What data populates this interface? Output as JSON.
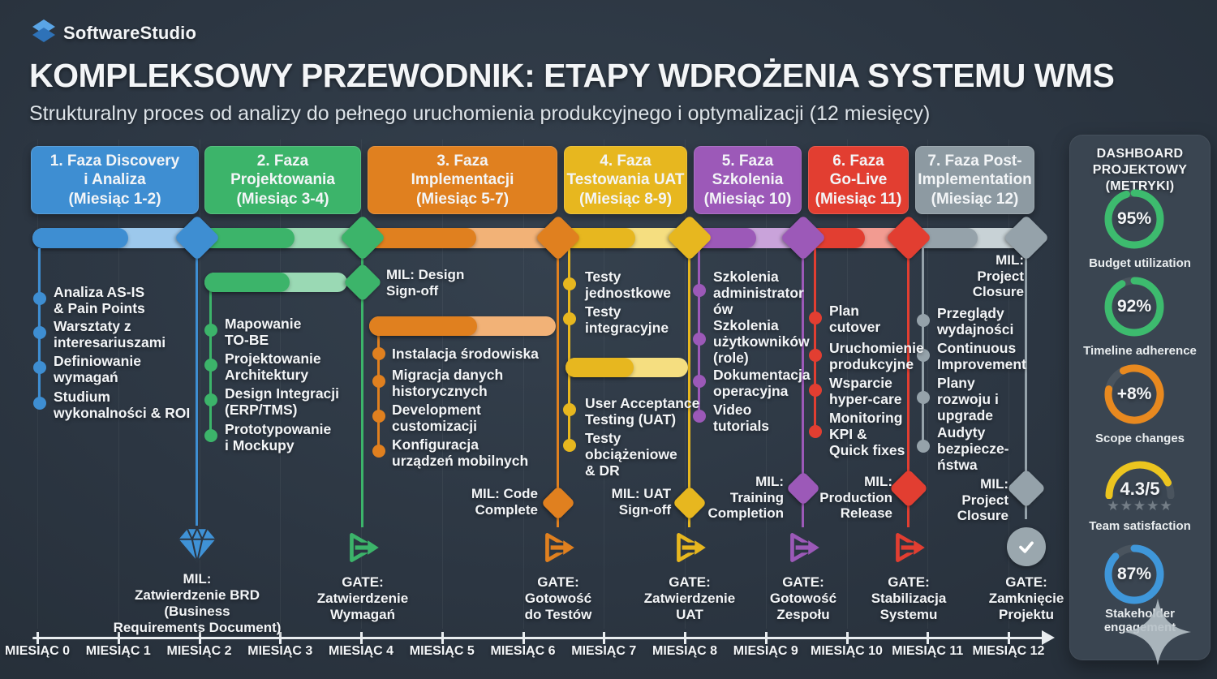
{
  "brand": "SoftwareStudio",
  "header": {
    "title": "KOMPLEKSOWY PRZEWODNIK: ETAPY WDROŻENIA SYSTEMU WMS",
    "subtitle": "Strukturalny proces od analizy do pełnego uruchomienia produkcyjnego i optymalizacji (12 miesięcy)"
  },
  "phases": [
    {
      "label": "1. Faza Discovery\ni Analiza\n(Miesiąc 1-2)",
      "color": "#3e8ed2",
      "tint": "#9cc8ec",
      "tasks": [
        "Analiza AS-IS\n& Pain Points",
        "Warsztaty z\ninteresariuszami",
        "Definiowanie\nwymagań",
        "Studium\nwykonalności & ROI"
      ]
    },
    {
      "label": "2. Faza\nProjektowania\n(Miesiąc 3-4)",
      "color": "#3cb46a",
      "tint": "#9ad9b4",
      "tasks": [
        "Mapowanie\nTO-BE",
        "Projektowanie\nArchitektury",
        "Design Integracji\n(ERP/TMS)",
        "Prototypowanie\ni Mockupy"
      ]
    },
    {
      "label": "3. Faza\nImplementacji\n(Miesiąc 5-7)",
      "color": "#e0801f",
      "tint": "#f2b277",
      "tasks": [
        "Instalacja środowiska",
        "Migracja danych\nhistorycznych",
        "Development\ncustomizacji",
        "Konfiguracja\nurządzeń mobilnych"
      ]
    },
    {
      "label": "4. Faza\nTestowania UAT\n(Miesiąc 8-9)",
      "color": "#e7b71f",
      "tint": "#f5de80",
      "tasks": [
        "Testy\njednostkowe",
        "Testy\nintegracyjne",
        "User Acceptance\nTesting (UAT)",
        "Testy\nobciążeniowe\n& DR"
      ]
    },
    {
      "label": "5. Faza\nSzkolenia\n(Miesiąc 10)",
      "color": "#9c59b8",
      "tint": "#c9a3da",
      "tasks": [
        "Szkolenia\nadministrator\nów",
        "Szkolenia\nużytkowników\n(role)",
        "Dokumentacja\noperacyjna",
        "Video\ntutorials"
      ]
    },
    {
      "label": "6. Faza\nGo-Live\n(Miesiąc 11)",
      "color": "#e23e31",
      "tint": "#f29b91",
      "tasks": [
        "Plan\ncutover",
        "Uruchomienie\nprodukcyjne",
        "Wsparcie\nhyper-care",
        "Monitoring\nKPI &\nQuick fixes"
      ]
    },
    {
      "label": "7. Faza Post-\nImplementation\n(Miesiąc 12)",
      "color": "#95a2aa",
      "tint": "#c8d2d6",
      "tasks": [
        "Przeglądy\nwydajności",
        "Continuous\nImprovement",
        "Plany\nrozwoju i\nupgrade",
        "Audyty\nbezpiecze-\nństwa"
      ]
    }
  ],
  "milestones": {
    "design_signoff": "MIL: Design\nSign-off",
    "project_closure_top": "MIL:\nProject\nClosure",
    "code_complete": "MIL: Code\nComplete",
    "uat_signoff": "MIL: UAT\nSign-off",
    "training_completion": "MIL:\nTraining\nCompletion",
    "production_release": "MIL:\nProduction\nRelease",
    "project_closure": "MIL:\nProject\nClosure"
  },
  "gates": [
    {
      "icon": "gem-milestone-icon",
      "label": "MIL:\nZatwierdzenie BRD\n(Business\nRequirements Document)"
    },
    {
      "icon": "gate-icon",
      "label": "GATE:\nZatwierdzenie\nWymagań"
    },
    {
      "icon": "gate-icon",
      "label": "GATE:\nGotowość\ndo Testów"
    },
    {
      "icon": "gate-icon",
      "label": "GATE:\nZatwierdzenie\nUAT"
    },
    {
      "icon": "gate-icon",
      "label": "GATE:\nGotowość\nZespołu"
    },
    {
      "icon": "gate-icon",
      "label": "GATE:\nStabilizacja\nSystemu"
    },
    {
      "icon": "check-circle-icon",
      "label": "GATE:\nZamknięcie\nProjektu"
    }
  ],
  "axis": {
    "months": [
      "MIESIĄC 0",
      "MIESIĄC 1",
      "MIESIĄC 2",
      "MIESIĄC 3",
      "MIESIĄC 4",
      "MIESIĄC 5",
      "MIESIĄC 6",
      "MIESIĄC 7",
      "MIESIĄC 8",
      "MIESIĄC 9",
      "MIESIĄC 10",
      "MIESIĄC 11",
      "MIESIĄC 12"
    ]
  },
  "dashboard": {
    "title": "DASHBOARD\nPROJEKTOWY\n(METRYKI)",
    "stars_text": "★★★★★",
    "metrics": [
      {
        "value": "95%",
        "label": "Budget utilization",
        "color": "#3dbb6e",
        "arc_pct": 95,
        "shape": "ring"
      },
      {
        "value": "92%",
        "label": "Timeline adherence",
        "color": "#3dbb6e",
        "arc_pct": 92,
        "shape": "ring"
      },
      {
        "value": "+8%",
        "label": "Scope changes",
        "color": "#e8891f",
        "arc_pct": 85,
        "shape": "ring"
      },
      {
        "value": "4.3/5",
        "label": "Team satisfaction",
        "color": "#ecc51f",
        "arc_pct": 86,
        "shape": "gauge",
        "stars": 4.5
      },
      {
        "value": "87%",
        "label": "Stakeholder engagement",
        "color": "#3f97da",
        "arc_pct": 87,
        "shape": "ring"
      }
    ]
  }
}
